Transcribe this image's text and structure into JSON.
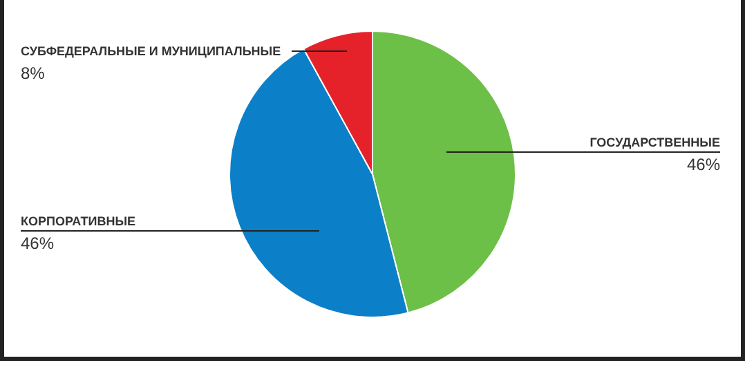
{
  "chart_data": {
    "type": "pie",
    "categories": [
      "ГОСУДАРСТВЕННЫЕ",
      "КОРПОРАТИВНЫЕ",
      "СУБФЕДЕРАЛЬНЫЕ И МУНИЦИПАЛЬНЫЕ"
    ],
    "values": [
      46,
      46,
      8
    ],
    "colors": [
      "#6cbf47",
      "#0b80c8",
      "#e52229"
    ],
    "value_labels": [
      "46%",
      "46%",
      "8%"
    ],
    "legend": false
  }
}
